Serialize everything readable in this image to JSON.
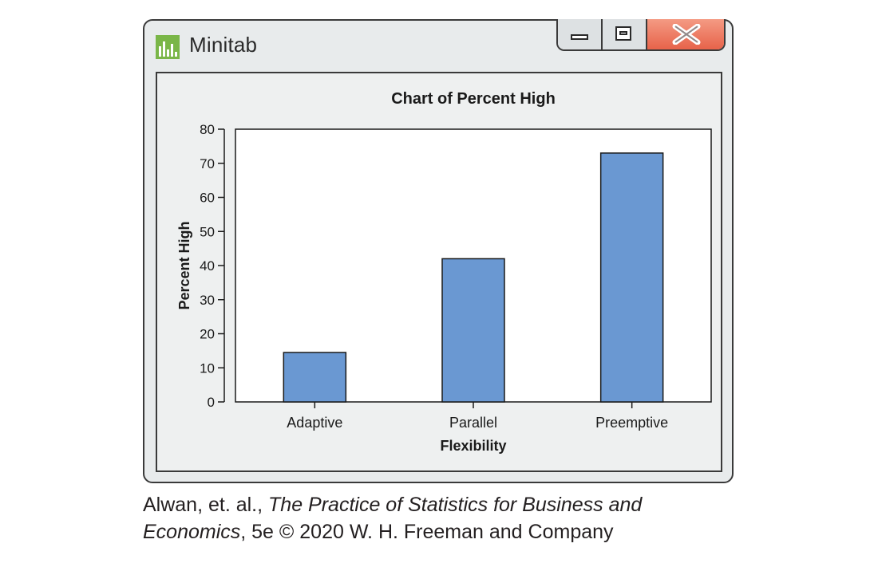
{
  "window": {
    "title": "Minitab",
    "controls": {
      "minimize": "minimize",
      "maximize": "maximize",
      "close": "close"
    },
    "icon": "minitab-bar-chart-icon"
  },
  "colors": {
    "bar_fill": "#6a98d2",
    "close_button": "#e7634a",
    "window_bg": "#e8ebec",
    "app_icon_green": "#7ab648"
  },
  "chart_data": {
    "type": "bar",
    "title": "Chart of Percent High",
    "xlabel": "Flexibility",
    "ylabel": "Percent High",
    "categories": [
      "Adaptive",
      "Parallel",
      "Preemptive"
    ],
    "values": [
      14.5,
      42,
      73
    ],
    "ylim": [
      0,
      80
    ],
    "yticks": [
      0,
      10,
      20,
      30,
      40,
      50,
      60,
      70,
      80
    ],
    "grid": false,
    "legend": "none"
  },
  "caption": {
    "authors": "Alwan, et. al., ",
    "book_title_line1": "The Practice of Statistics for Business and",
    "book_title_line2": "Economics",
    "edition": ", 5e © 2020 W. H. Freeman and Company"
  }
}
